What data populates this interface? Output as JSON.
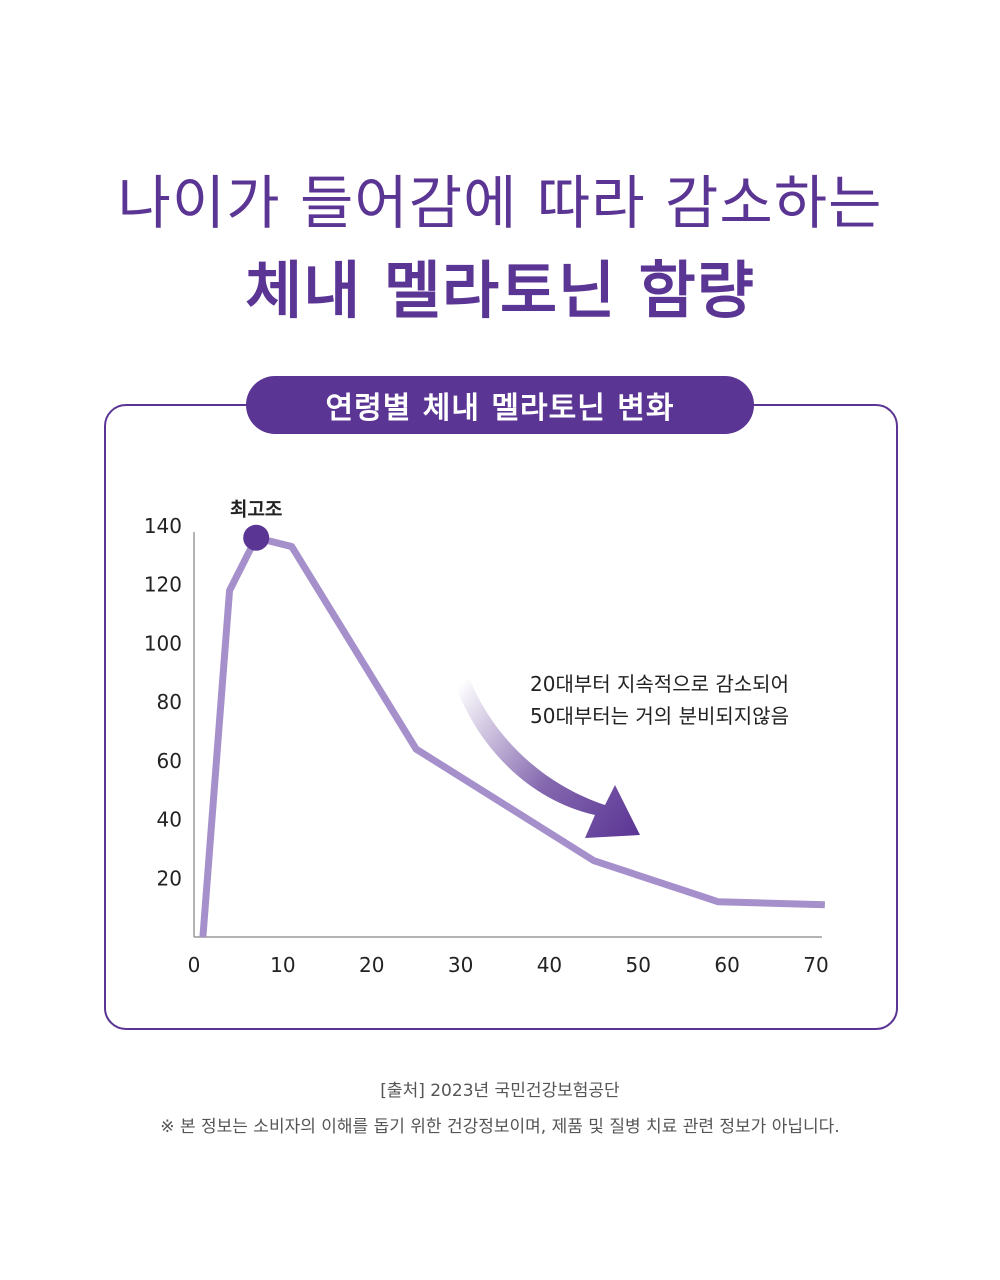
{
  "headline": {
    "line1": "나이가 들어감에 따라 감소하는",
    "line2": "체내 멜라토닌 함량"
  },
  "card": {
    "title": "연령별 체내 멜라토닌 변화"
  },
  "chart_data": {
    "type": "line",
    "title": "연령별 체내 멜라토닌 변화",
    "xlabel": "",
    "ylabel": "",
    "xlim": [
      0,
      70
    ],
    "ylim": [
      0,
      140
    ],
    "x_ticks": [
      0,
      10,
      20,
      30,
      40,
      50,
      60,
      70
    ],
    "y_ticks": [
      20,
      40,
      60,
      80,
      100,
      120,
      140
    ],
    "grid": false,
    "series": [
      {
        "x": [
          1,
          4,
          7,
          11,
          25,
          45,
          59,
          71
        ],
        "y": [
          0,
          118,
          136,
          133,
          64,
          26,
          12,
          11
        ],
        "color": "#a690cc"
      }
    ],
    "peak": {
      "label": "최고조",
      "x": 7,
      "y": 136,
      "color": "#5b3594"
    },
    "annotation": {
      "lines": [
        "20대부터 지속적으로 감소되어",
        "50대부터는 거의 분비되지않음"
      ]
    }
  },
  "footer": {
    "source": "[출처] 2023년 국민건강보험공단",
    "notice": "※ 본 정보는 소비자의 이해를 돕기 위한 건강정보이며, 제품 및 질병 치료 관련 정보가 아닙니다."
  },
  "colors": {
    "accent": "#5b3594",
    "line": "#a690cc"
  }
}
